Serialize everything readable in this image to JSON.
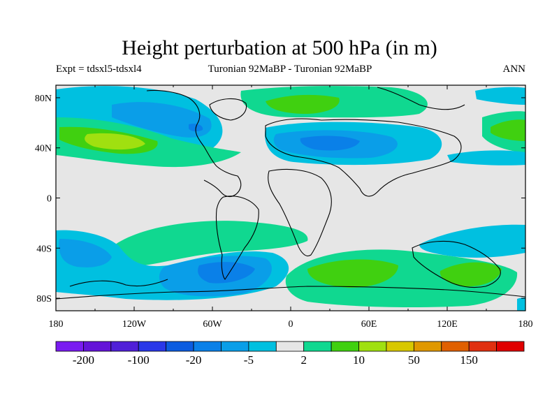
{
  "title": "Height perturbation at 500 hPa (in m)",
  "subtitle_left": "Expt = tdsxl5-tdsxl4",
  "subtitle_center": "Turonian  92MaBP - Turonian  92MaBP",
  "subtitle_right": "ANN",
  "lon_ticks": [
    "180",
    "120W",
    "60W",
    "0",
    "60E",
    "120E",
    "180"
  ],
  "lat_ticks": [
    "80N",
    "40N",
    "0",
    "40S",
    "80S"
  ],
  "colorbar": {
    "colors": [
      "#7a1cf0",
      "#6414d8",
      "#5020d8",
      "#2a38e8",
      "#0c5ce0",
      "#0a80e8",
      "#0a9ee8",
      "#00c0e0",
      "#e6e6e6",
      "#10d890",
      "#40d010",
      "#a0e010",
      "#d8c800",
      "#e09800",
      "#e06000",
      "#e03010",
      "#e00000"
    ],
    "labels": [
      "-200",
      "-100",
      "-20",
      "-5",
      "2",
      "10",
      "50",
      "150"
    ]
  }
}
